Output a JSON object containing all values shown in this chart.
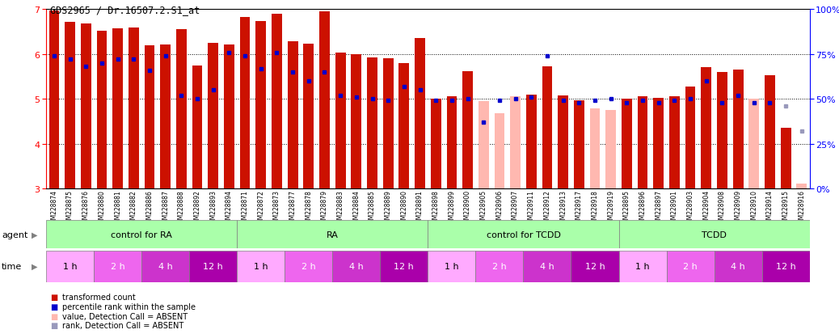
{
  "title": "GDS2965 / Dr.16507.2.S1_at",
  "samples": [
    "GSM228874",
    "GSM228875",
    "GSM228876",
    "GSM228880",
    "GSM228881",
    "GSM228882",
    "GSM228886",
    "GSM228887",
    "GSM228888",
    "GSM228892",
    "GSM228893",
    "GSM228894",
    "GSM228871",
    "GSM228872",
    "GSM228873",
    "GSM228877",
    "GSM228878",
    "GSM228879",
    "GSM228883",
    "GSM228884",
    "GSM228885",
    "GSM228889",
    "GSM228890",
    "GSM228891",
    "GSM228898",
    "GSM228899",
    "GSM228900",
    "GSM228905",
    "GSM228906",
    "GSM228907",
    "GSM228911",
    "GSM228912",
    "GSM228913",
    "GSM228917",
    "GSM228918",
    "GSM228919",
    "GSM228895",
    "GSM228896",
    "GSM228897",
    "GSM228901",
    "GSM228903",
    "GSM228904",
    "GSM228908",
    "GSM228909",
    "GSM228910",
    "GSM228914",
    "GSM228915",
    "GSM228916"
  ],
  "red_values": [
    6.98,
    6.72,
    6.68,
    6.52,
    6.58,
    6.6,
    6.2,
    6.22,
    6.56,
    5.75,
    6.25,
    6.22,
    6.82,
    6.74,
    6.9,
    6.28,
    6.23,
    6.95,
    6.03,
    6.0,
    5.92,
    5.9,
    5.8,
    6.35,
    5.0,
    5.05,
    5.62,
    4.95,
    4.68,
    5.05,
    5.1,
    5.72,
    5.08,
    4.97,
    4.78,
    4.75,
    5.0,
    5.05,
    5.03,
    5.06,
    5.28,
    5.7,
    5.6,
    5.65,
    5.0,
    5.52,
    4.35,
    3.1
  ],
  "blue_values_pct": [
    74,
    72,
    68,
    70,
    72,
    72,
    66,
    74,
    52,
    50,
    55,
    76,
    74,
    67,
    76,
    65,
    60,
    65,
    52,
    51,
    50,
    49,
    57,
    55,
    49,
    49,
    50,
    37,
    49,
    50,
    51,
    74,
    49,
    48,
    49,
    50,
    48,
    49,
    48,
    49,
    50,
    60,
    48,
    52,
    48,
    48,
    46,
    32
  ],
  "absent_red": [
    false,
    false,
    false,
    false,
    false,
    false,
    false,
    false,
    false,
    false,
    false,
    false,
    false,
    false,
    false,
    false,
    false,
    false,
    false,
    false,
    false,
    false,
    false,
    false,
    false,
    false,
    false,
    true,
    true,
    true,
    false,
    false,
    false,
    false,
    true,
    true,
    false,
    false,
    false,
    false,
    false,
    false,
    false,
    false,
    true,
    false,
    false,
    true
  ],
  "absent_blue": [
    false,
    false,
    false,
    false,
    false,
    false,
    false,
    false,
    false,
    false,
    false,
    false,
    false,
    false,
    false,
    false,
    false,
    false,
    false,
    false,
    false,
    false,
    false,
    false,
    false,
    false,
    false,
    false,
    false,
    false,
    false,
    false,
    false,
    false,
    false,
    false,
    false,
    false,
    false,
    false,
    false,
    false,
    false,
    false,
    false,
    false,
    true,
    true
  ],
  "ylim_left": [
    3,
    7
  ],
  "ylim_right": [
    0,
    100
  ],
  "yticks_left": [
    3,
    4,
    5,
    6,
    7
  ],
  "yticks_right": [
    0,
    25,
    50,
    75,
    100
  ],
  "hlines": [
    4,
    5,
    6
  ],
  "color_red": "#CC1100",
  "color_pink": "#FFB8B0",
  "color_blue": "#0000CC",
  "color_blue_light": "#9999BB",
  "bar_width": 0.65,
  "bar_bottom": 3.0,
  "background_color": "#FFFFFF",
  "plot_bg_color": "#FFFFFF",
  "agent_groups": [
    {
      "label": "control for RA",
      "start": 0,
      "end": 12,
      "color": "#AAFFAA"
    },
    {
      "label": "RA",
      "start": 12,
      "end": 24,
      "color": "#AAFFAA"
    },
    {
      "label": "control for TCDD",
      "start": 24,
      "end": 36,
      "color": "#AAFFAA"
    },
    {
      "label": "TCDD",
      "start": 36,
      "end": 48,
      "color": "#AAFFAA"
    }
  ],
  "time_groups": [
    {
      "label": "1 h",
      "start": 0,
      "end": 3,
      "color": "#FFAAFF"
    },
    {
      "label": "2 h",
      "start": 3,
      "end": 6,
      "color": "#EE66EE"
    },
    {
      "label": "4 h",
      "start": 6,
      "end": 9,
      "color": "#CC33CC"
    },
    {
      "label": "12 h",
      "start": 9,
      "end": 12,
      "color": "#AA00AA"
    },
    {
      "label": "1 h",
      "start": 12,
      "end": 15,
      "color": "#FFAAFF"
    },
    {
      "label": "2 h",
      "start": 15,
      "end": 18,
      "color": "#EE66EE"
    },
    {
      "label": "4 h",
      "start": 18,
      "end": 21,
      "color": "#CC33CC"
    },
    {
      "label": "12 h",
      "start": 21,
      "end": 24,
      "color": "#AA00AA"
    },
    {
      "label": "1 h",
      "start": 24,
      "end": 27,
      "color": "#FFAAFF"
    },
    {
      "label": "2 h",
      "start": 27,
      "end": 30,
      "color": "#EE66EE"
    },
    {
      "label": "4 h",
      "start": 30,
      "end": 33,
      "color": "#CC33CC"
    },
    {
      "label": "12 h",
      "start": 33,
      "end": 36,
      "color": "#AA00AA"
    },
    {
      "label": "1 h",
      "start": 36,
      "end": 39,
      "color": "#FFAAFF"
    },
    {
      "label": "2 h",
      "start": 39,
      "end": 42,
      "color": "#EE66EE"
    },
    {
      "label": "4 h",
      "start": 42,
      "end": 45,
      "color": "#CC33CC"
    },
    {
      "label": "12 h",
      "start": 45,
      "end": 48,
      "color": "#AA00AA"
    }
  ],
  "legend": [
    {
      "color": "#CC1100",
      "label": "transformed count"
    },
    {
      "color": "#0000CC",
      "label": "percentile rank within the sample"
    },
    {
      "color": "#FFB8B0",
      "label": "value, Detection Call = ABSENT"
    },
    {
      "color": "#9999BB",
      "label": "rank, Detection Call = ABSENT"
    }
  ]
}
